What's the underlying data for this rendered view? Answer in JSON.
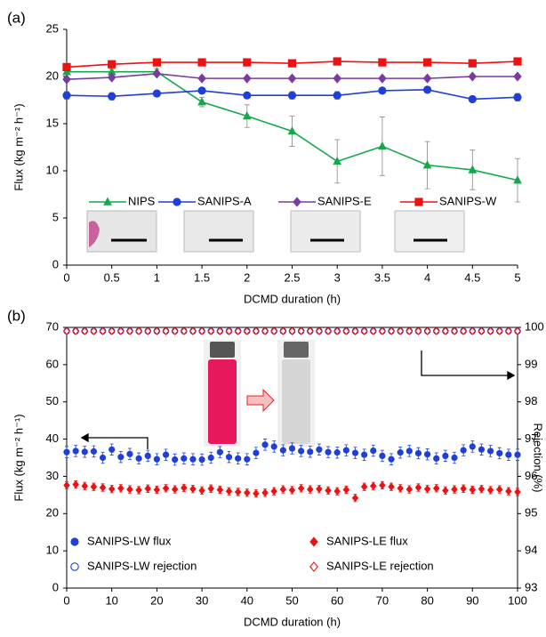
{
  "chart_data": [
    {
      "type": "line",
      "panel_label": "(a)",
      "x_label": "DCMD duration (h)",
      "y_label": "Flux (kg m⁻² h⁻¹)",
      "x": [
        0,
        0.5,
        1,
        1.5,
        2,
        2.5,
        3,
        3.5,
        4,
        4.5,
        5
      ],
      "xlim": [
        0,
        5
      ],
      "xticks": [
        0,
        0.5,
        1,
        1.5,
        2,
        2.5,
        3,
        3.5,
        4,
        4.5,
        5
      ],
      "ylim": [
        0,
        25
      ],
      "yticks": [
        0,
        5,
        10,
        15,
        20,
        25
      ],
      "series": [
        {
          "name": "NIPS",
          "color": "#14a84a",
          "marker": "triangle",
          "filled": true,
          "values": [
            20.5,
            20.5,
            20.5,
            17.3,
            15.8,
            14.2,
            11.0,
            12.6,
            10.6,
            10.1,
            9.0
          ],
          "errors": [
            0.3,
            0.3,
            0.3,
            0.5,
            1.2,
            1.6,
            2.3,
            3.1,
            2.5,
            2.1,
            2.3
          ]
        },
        {
          "name": "SANIPS-A",
          "color": "#1f3fd9",
          "marker": "circle",
          "filled": true,
          "values": [
            18.0,
            17.9,
            18.2,
            18.5,
            18.0,
            18.0,
            18.0,
            18.5,
            18.6,
            17.6,
            17.8
          ],
          "errors": [
            0.4,
            0.4,
            0.3,
            0.3,
            0.3,
            0.4,
            0.4,
            0.3,
            0.3,
            0.3,
            0.4
          ]
        },
        {
          "name": "SANIPS-E",
          "color": "#7a3aa0",
          "marker": "diamond",
          "filled": true,
          "values": [
            19.7,
            19.9,
            20.3,
            19.8,
            19.8,
            19.8,
            19.8,
            19.8,
            19.8,
            20.0,
            20.0
          ],
          "errors": [
            0.2,
            0.2,
            0.2,
            0.2,
            0.2,
            0.2,
            0.2,
            0.2,
            0.2,
            0.2,
            0.2
          ]
        },
        {
          "name": "SANIPS-W",
          "color": "#ee1111",
          "marker": "square",
          "filled": true,
          "values": [
            21.0,
            21.3,
            21.5,
            21.5,
            21.5,
            21.4,
            21.6,
            21.5,
            21.5,
            21.4,
            21.6
          ],
          "errors": [
            0.1,
            0.1,
            0.1,
            0.1,
            0.1,
            0.1,
            0.1,
            0.1,
            0.1,
            0.1,
            0.1
          ]
        }
      ]
    },
    {
      "type": "scatter",
      "panel_label": "(b)",
      "x_label": "DCMD duration (h)",
      "y_label": "Flux (kg m⁻² h⁻¹)",
      "y2_label": "Rejection (%)",
      "x": [
        0,
        2,
        4,
        6,
        8,
        10,
        12,
        14,
        16,
        18,
        20,
        22,
        24,
        26,
        28,
        30,
        32,
        34,
        36,
        38,
        40,
        42,
        44,
        46,
        48,
        50,
        52,
        54,
        56,
        58,
        60,
        62,
        64,
        66,
        68,
        70,
        72,
        74,
        76,
        78,
        80,
        82,
        84,
        86,
        88,
        90,
        92,
        94,
        96,
        98,
        100
      ],
      "xlim": [
        0,
        100
      ],
      "xticks": [
        0,
        10,
        20,
        30,
        40,
        50,
        60,
        70,
        80,
        90,
        100
      ],
      "ylim": [
        0,
        70
      ],
      "yticks": [
        0,
        10,
        20,
        30,
        40,
        50,
        60,
        70
      ],
      "y2lim": [
        93,
        100
      ],
      "y2ticks": [
        93,
        94,
        95,
        96,
        97,
        98,
        99,
        100
      ],
      "series": [
        {
          "name": "SANIPS-LW flux",
          "color": "#1f3fd9",
          "marker": "circle",
          "filled": true,
          "values": [
            36.5,
            36.8,
            36.6,
            36.7,
            35.0,
            37.2,
            35.2,
            36.0,
            34.8,
            35.5,
            34.6,
            35.8,
            34.5,
            34.8,
            34.6,
            34.5,
            35.0,
            36.5,
            35.2,
            34.8,
            34.6,
            36.3,
            38.5,
            38.0,
            37.0,
            37.5,
            36.8,
            36.6,
            37.2,
            36.5,
            36.4,
            37.0,
            36.3,
            35.8,
            36.9,
            35.5,
            34.6,
            36.4,
            36.8,
            36.2,
            35.9,
            34.8,
            35.5,
            35.0,
            37.0,
            38.0,
            37.2,
            36.8,
            36.2,
            35.8,
            35.8
          ],
          "errors": [
            1.5,
            1.5,
            1.5,
            1.5,
            1.5,
            1.5,
            1.5,
            1.5,
            1.5,
            1.5,
            1.5,
            1.5,
            1.5,
            1.5,
            1.5,
            1.5,
            1.5,
            1.5,
            1.5,
            1.5,
            1.5,
            1.5,
            1.5,
            1.5,
            1.5,
            1.5,
            1.5,
            1.5,
            1.5,
            1.5,
            1.5,
            1.5,
            1.5,
            1.5,
            1.5,
            1.5,
            1.5,
            1.5,
            1.5,
            1.5,
            1.5,
            1.5,
            1.5,
            1.5,
            1.5,
            1.5,
            1.5,
            1.5,
            1.5,
            1.5,
            1.5
          ]
        },
        {
          "name": "SANIPS-LE flux",
          "color": "#ee1111",
          "marker": "diamond",
          "filled": true,
          "values": [
            27.6,
            27.8,
            27.4,
            27.2,
            27.0,
            26.6,
            26.8,
            26.5,
            26.3,
            26.7,
            26.4,
            26.8,
            26.5,
            26.9,
            26.6,
            26.2,
            26.7,
            26.4,
            26.0,
            25.8,
            25.6,
            25.4,
            25.6,
            26.0,
            26.5,
            26.3,
            26.8,
            26.5,
            26.6,
            26.2,
            26.0,
            26.4,
            24.2,
            27.2,
            27.4,
            27.6,
            27.2,
            26.8,
            26.5,
            27.0,
            26.6,
            26.8,
            26.2,
            26.5,
            26.7,
            26.4,
            26.6,
            26.3,
            26.5,
            26.0,
            25.8
          ],
          "errors": [
            1.0,
            1.0,
            1.0,
            1.0,
            1.0,
            1.0,
            1.0,
            1.0,
            1.0,
            1.0,
            1.0,
            1.0,
            1.0,
            1.0,
            1.0,
            1.0,
            1.0,
            1.0,
            1.0,
            1.0,
            1.0,
            1.0,
            1.0,
            1.0,
            1.0,
            1.0,
            1.0,
            1.0,
            1.0,
            1.0,
            1.0,
            1.0,
            1.0,
            1.0,
            1.0,
            1.0,
            1.0,
            1.0,
            1.0,
            1.0,
            1.0,
            1.0,
            1.0,
            1.0,
            1.0,
            1.0,
            1.0,
            1.0,
            1.0,
            1.0,
            1.0
          ]
        },
        {
          "name": "SANIPS-LW rejection",
          "color": "#1f3fd9",
          "marker": "circle",
          "filled": false,
          "axis": "y2",
          "values": [
            99.9,
            99.9,
            99.9,
            99.9,
            99.9,
            99.9,
            99.9,
            99.9,
            99.9,
            99.9,
            99.9,
            99.9,
            99.9,
            99.9,
            99.9,
            99.9,
            99.9,
            99.9,
            99.9,
            99.9,
            99.9,
            99.9,
            99.9,
            99.9,
            99.9,
            99.9,
            99.9,
            99.9,
            99.9,
            99.9,
            99.9,
            99.9,
            99.9,
            99.9,
            99.9,
            99.9,
            99.9,
            99.9,
            99.9,
            99.9,
            99.9,
            99.9,
            99.9,
            99.9,
            99.9,
            99.9,
            99.9,
            99.9,
            99.9,
            99.9,
            99.9
          ]
        },
        {
          "name": "SANIPS-LE rejection",
          "color": "#ee1111",
          "marker": "diamond",
          "filled": false,
          "axis": "y2",
          "values": [
            99.9,
            99.9,
            99.9,
            99.9,
            99.9,
            99.9,
            99.9,
            99.9,
            99.9,
            99.9,
            99.9,
            99.9,
            99.9,
            99.9,
            99.9,
            99.9,
            99.9,
            99.9,
            99.9,
            99.9,
            99.9,
            99.9,
            99.9,
            99.9,
            99.9,
            99.9,
            99.9,
            99.9,
            99.9,
            99.9,
            99.9,
            99.9,
            99.9,
            99.9,
            99.9,
            99.9,
            99.9,
            99.9,
            99.9,
            99.9,
            99.9,
            99.9,
            99.9,
            99.9,
            99.9,
            99.9,
            99.9,
            99.9,
            99.9,
            99.9,
            99.9
          ]
        }
      ]
    }
  ]
}
